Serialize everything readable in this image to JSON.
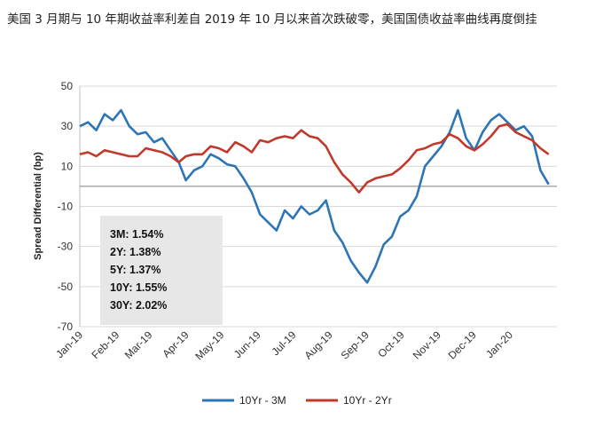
{
  "caption": "美国 3 月期与 10 年期收益率利差自 2019 年 10 月以来首次跌破零，美国国债收益率曲线再度倒挂",
  "chart_data": {
    "type": "line",
    "title": "",
    "ylabel": "Spread Differential (bp)",
    "xlabel": "",
    "ylim": [
      -70,
      50
    ],
    "yticks": [
      50,
      30,
      10,
      -10,
      -30,
      -50,
      -70
    ],
    "xlim": [
      "2019-01-01",
      "2020-02-10"
    ],
    "xticks": [
      {
        "label": "Jan-19",
        "date": "2019-01-01"
      },
      {
        "label": "Feb-19",
        "date": "2019-02-01"
      },
      {
        "label": "Mar-19",
        "date": "2019-03-01"
      },
      {
        "label": "Apr-19",
        "date": "2019-04-01"
      },
      {
        "label": "May-19",
        "date": "2019-05-01"
      },
      {
        "label": "Jun-19",
        "date": "2019-06-01"
      },
      {
        "label": "Jul-19",
        "date": "2019-07-01"
      },
      {
        "label": "Aug-19",
        "date": "2019-08-01"
      },
      {
        "label": "Sep-19",
        "date": "2019-09-01"
      },
      {
        "label": "Oct-19",
        "date": "2019-10-01"
      },
      {
        "label": "Nov-19",
        "date": "2019-11-01"
      },
      {
        "label": "Dec-19",
        "date": "2019-12-01"
      },
      {
        "label": "Jan-20",
        "date": "2020-01-01"
      }
    ],
    "grid": "horizontal",
    "legend": "bottom",
    "series": [
      {
        "name": "10Yr - 3M",
        "color": "#2E75B6",
        "points": [
          [
            "2019-01-01",
            30
          ],
          [
            "2019-01-08",
            32
          ],
          [
            "2019-01-15",
            28
          ],
          [
            "2019-01-22",
            36
          ],
          [
            "2019-01-29",
            33
          ],
          [
            "2019-02-05",
            38
          ],
          [
            "2019-02-12",
            30
          ],
          [
            "2019-02-19",
            26
          ],
          [
            "2019-02-26",
            27
          ],
          [
            "2019-03-05",
            22
          ],
          [
            "2019-03-12",
            24
          ],
          [
            "2019-03-19",
            18
          ],
          [
            "2019-03-26",
            12
          ],
          [
            "2019-04-01",
            3
          ],
          [
            "2019-04-08",
            8
          ],
          [
            "2019-04-15",
            10
          ],
          [
            "2019-04-22",
            16
          ],
          [
            "2019-04-29",
            14
          ],
          [
            "2019-05-06",
            11
          ],
          [
            "2019-05-13",
            10
          ],
          [
            "2019-05-20",
            4
          ],
          [
            "2019-05-27",
            -3
          ],
          [
            "2019-06-03",
            -14
          ],
          [
            "2019-06-10",
            -18
          ],
          [
            "2019-06-17",
            -22
          ],
          [
            "2019-06-24",
            -12
          ],
          [
            "2019-07-01",
            -16
          ],
          [
            "2019-07-08",
            -10
          ],
          [
            "2019-07-15",
            -14
          ],
          [
            "2019-07-22",
            -12
          ],
          [
            "2019-07-29",
            -7
          ],
          [
            "2019-08-05",
            -22
          ],
          [
            "2019-08-12",
            -28
          ],
          [
            "2019-08-19",
            -37
          ],
          [
            "2019-08-26",
            -43
          ],
          [
            "2019-09-02",
            -48
          ],
          [
            "2019-09-09",
            -40
          ],
          [
            "2019-09-16",
            -29
          ],
          [
            "2019-09-23",
            -25
          ],
          [
            "2019-09-30",
            -15
          ],
          [
            "2019-10-07",
            -12
          ],
          [
            "2019-10-14",
            -5
          ],
          [
            "2019-10-21",
            10
          ],
          [
            "2019-10-28",
            15
          ],
          [
            "2019-11-04",
            20
          ],
          [
            "2019-11-11",
            27
          ],
          [
            "2019-11-18",
            38
          ],
          [
            "2019-11-25",
            24
          ],
          [
            "2019-12-02",
            18
          ],
          [
            "2019-12-09",
            27
          ],
          [
            "2019-12-16",
            33
          ],
          [
            "2019-12-23",
            36
          ],
          [
            "2019-12-30",
            32
          ],
          [
            "2020-01-06",
            28
          ],
          [
            "2020-01-13",
            30
          ],
          [
            "2020-01-20",
            25
          ],
          [
            "2020-01-27",
            8
          ],
          [
            "2020-02-03",
            1
          ]
        ]
      },
      {
        "name": "10Yr - 2Yr",
        "color": "#C0392B",
        "points": [
          [
            "2019-01-01",
            16
          ],
          [
            "2019-01-08",
            17
          ],
          [
            "2019-01-15",
            15
          ],
          [
            "2019-01-22",
            18
          ],
          [
            "2019-01-29",
            17
          ],
          [
            "2019-02-05",
            16
          ],
          [
            "2019-02-12",
            15
          ],
          [
            "2019-02-19",
            15
          ],
          [
            "2019-02-26",
            19
          ],
          [
            "2019-03-05",
            18
          ],
          [
            "2019-03-12",
            17
          ],
          [
            "2019-03-19",
            15
          ],
          [
            "2019-03-26",
            12
          ],
          [
            "2019-04-01",
            15
          ],
          [
            "2019-04-08",
            16
          ],
          [
            "2019-04-15",
            16
          ],
          [
            "2019-04-22",
            20
          ],
          [
            "2019-04-29",
            19
          ],
          [
            "2019-05-06",
            17
          ],
          [
            "2019-05-13",
            22
          ],
          [
            "2019-05-20",
            20
          ],
          [
            "2019-05-27",
            17
          ],
          [
            "2019-06-03",
            23
          ],
          [
            "2019-06-10",
            22
          ],
          [
            "2019-06-17",
            24
          ],
          [
            "2019-06-24",
            25
          ],
          [
            "2019-07-01",
            24
          ],
          [
            "2019-07-08",
            28
          ],
          [
            "2019-07-15",
            25
          ],
          [
            "2019-07-22",
            24
          ],
          [
            "2019-07-29",
            20
          ],
          [
            "2019-08-05",
            12
          ],
          [
            "2019-08-12",
            6
          ],
          [
            "2019-08-19",
            2
          ],
          [
            "2019-08-26",
            -3
          ],
          [
            "2019-09-02",
            2
          ],
          [
            "2019-09-09",
            4
          ],
          [
            "2019-09-16",
            5
          ],
          [
            "2019-09-23",
            6
          ],
          [
            "2019-09-30",
            9
          ],
          [
            "2019-10-07",
            13
          ],
          [
            "2019-10-14",
            18
          ],
          [
            "2019-10-21",
            19
          ],
          [
            "2019-10-28",
            21
          ],
          [
            "2019-11-04",
            22
          ],
          [
            "2019-11-11",
            26
          ],
          [
            "2019-11-18",
            24
          ],
          [
            "2019-11-25",
            20
          ],
          [
            "2019-12-02",
            18
          ],
          [
            "2019-12-09",
            21
          ],
          [
            "2019-12-16",
            25
          ],
          [
            "2019-12-23",
            30
          ],
          [
            "2019-12-30",
            31
          ],
          [
            "2020-01-06",
            27
          ],
          [
            "2020-01-13",
            25
          ],
          [
            "2020-01-20",
            23
          ],
          [
            "2020-01-27",
            19
          ],
          [
            "2020-02-03",
            16
          ]
        ]
      }
    ],
    "annotation_box": [
      "3M: 1.54%",
      "2Y: 1.38%",
      "5Y: 1.37%",
      "10Y: 1.55%",
      "30Y: 2.02%"
    ]
  }
}
